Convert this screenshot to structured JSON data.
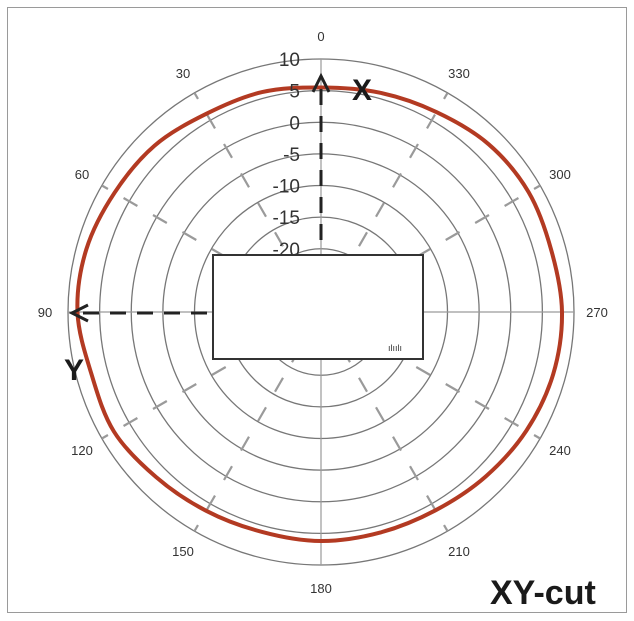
{
  "chart_data": {
    "type": "polar",
    "title": "",
    "angle_unit": "degrees",
    "angle_direction": "counterclockwise",
    "zero_at": "top",
    "angular_ticks": [
      "0",
      "30",
      "60",
      "90",
      "120",
      "150",
      "180",
      "210",
      "240",
      "270",
      "300",
      "330"
    ],
    "radial_ticks": [
      "10",
      "5",
      "0",
      "-5",
      "-10",
      "-15",
      "-20"
    ],
    "rlim": [
      -30,
      10
    ],
    "grid": true,
    "series": [
      {
        "angles": [
          0,
          15,
          30,
          45,
          60,
          75,
          90,
          105,
          120,
          135,
          150,
          165,
          180,
          195,
          210,
          225,
          240,
          255,
          270,
          285,
          300,
          315,
          330,
          345
        ],
        "values": [
          5.5,
          6.0,
          6.2,
          7.2,
          7.7,
          8.4,
          8.5,
          7.6,
          7.8,
          6.9,
          6.3,
          6.0,
          6.2,
          6.1,
          6.2,
          6.8,
          7.5,
          8.0,
          8.1,
          7.7,
          7.9,
          7.5,
          6.5,
          5.9
        ],
        "color": "#b33a22"
      }
    ],
    "annotations": {
      "x_axis_label": "X",
      "y_axis_label": "Y",
      "cut_label": "XY-cut"
    },
    "device_marking": "ılıılı"
  },
  "colors": {
    "grid": "#777777",
    "radial_dash": "#9a9a9a",
    "trace": "#b33a22",
    "axis_arrow": "#222222"
  }
}
